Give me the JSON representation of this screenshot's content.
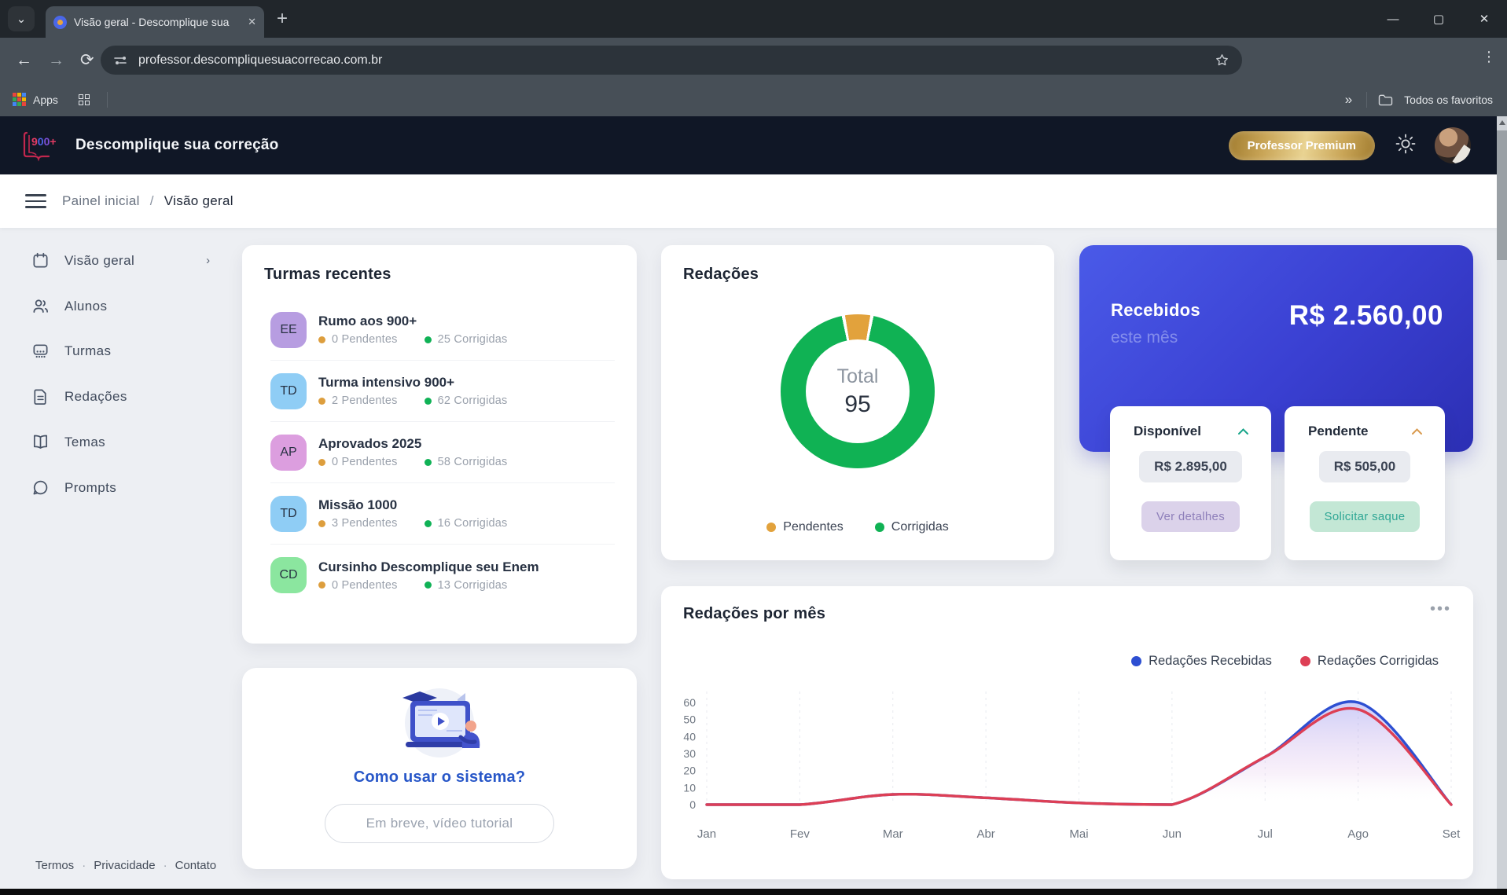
{
  "browser": {
    "tab": {
      "title": "Visão geral - Descomplique sua",
      "close_glyph": "✕",
      "new_tab_glyph": "+",
      "search_glyph": "⌄"
    },
    "window_controls": {
      "minimize": "—",
      "maximize": "▢",
      "close": "✕"
    },
    "url": "professor.descompliquesuacorrecao.com.br",
    "menu_glyph": "⋮",
    "bookmarks": {
      "apps": "Apps",
      "overflow_glyph": "»",
      "favorites": "Todos os favoritos"
    }
  },
  "header": {
    "logo_chars": [
      "9",
      "0",
      "0",
      "+"
    ],
    "title": "Descomplique sua correção",
    "badge": "Professor Premium"
  },
  "breadcrumb": {
    "parent": "Painel inicial",
    "sep": "/",
    "current": "Visão geral"
  },
  "sidebar": {
    "items": [
      {
        "label": "Visão geral",
        "chevron": "›"
      },
      {
        "label": "Alunos"
      },
      {
        "label": "Turmas"
      },
      {
        "label": "Redações"
      },
      {
        "label": "Temas"
      },
      {
        "label": "Prompts"
      }
    ]
  },
  "turmas": {
    "title": "Turmas recentes",
    "items": [
      {
        "initials": "EE",
        "name": "Rumo aos 900+",
        "pendentes": "0 Pendentes",
        "corrigidas": "25 Corrigidas",
        "color": "#b79de1"
      },
      {
        "initials": "TD",
        "name": "Turma intensivo 900+",
        "pendentes": "2 Pendentes",
        "corrigidas": "62 Corrigidas",
        "color": "#8fcdf5"
      },
      {
        "initials": "AP",
        "name": "Aprovados 2025",
        "pendentes": "0 Pendentes",
        "corrigidas": "58 Corrigidas",
        "color": "#dc9edf"
      },
      {
        "initials": "TD",
        "name": "Missão 1000",
        "pendentes": "3 Pendentes",
        "corrigidas": "16 Corrigidas",
        "color": "#8fcdf5"
      },
      {
        "initials": "CD",
        "name": "Cursinho Descomplique seu Enem",
        "pendentes": "0 Pendentes",
        "corrigidas": "13 Corrigidas",
        "color": "#8be69f"
      }
    ],
    "status_colors": {
      "pendentes": "#dd9e3d",
      "corrigidas": "#10b256"
    }
  },
  "redacoes": {
    "title": "Redações",
    "center_label": "Total",
    "center_value": "95"
  },
  "recebidos": {
    "title": "Recebidos",
    "subtitle": "este mês",
    "amount": "R$ 2.560,00",
    "available": {
      "label": "Disponível",
      "value": "R$ 2.895,00",
      "button": "Ver detalhes",
      "chevron_color": "#17a589"
    },
    "pending": {
      "label": "Pendente",
      "value": "R$ 505,00",
      "button": "Solicitar saque",
      "chevron_color": "#d99a4e"
    }
  },
  "tutorial": {
    "title": "Como usar o sistema?",
    "button": "Em breve, vídeo tutorial"
  },
  "months_card": {
    "title": "Redações por mês",
    "menu_glyph": "•••"
  },
  "footer": {
    "links": [
      "Termos",
      "Privacidade",
      "Contato"
    ],
    "sep": "·"
  },
  "chart_data": [
    {
      "type": "pie",
      "title": "Redações",
      "labels": [
        "Pendentes",
        "Corrigidas"
      ],
      "values": [
        5,
        90
      ],
      "colors": [
        "#e2a23c",
        "#10b254"
      ],
      "center_label": "Total",
      "center_value": 95,
      "legend_position": "bottom"
    },
    {
      "type": "line",
      "title": "Redações por mês",
      "categories": [
        "Jan",
        "Fev",
        "Mar",
        "Abr",
        "Mai",
        "Jun",
        "Jul",
        "Ago",
        "Set"
      ],
      "series": [
        {
          "name": "Redações Recebidas",
          "color": "#2d4fd2",
          "values": [
            0,
            0,
            6,
            4,
            1,
            0,
            28,
            60,
            0
          ]
        },
        {
          "name": "Redações Corrigidas",
          "color": "#dd3f55",
          "values": [
            0,
            0,
            6,
            4,
            1,
            0,
            28,
            56,
            0
          ]
        }
      ],
      "ylim": [
        0,
        60
      ],
      "yticks": [
        0,
        10,
        20,
        30,
        40,
        50,
        60
      ],
      "grid": "vertical-dashed",
      "legend_position": "top-right"
    }
  ]
}
